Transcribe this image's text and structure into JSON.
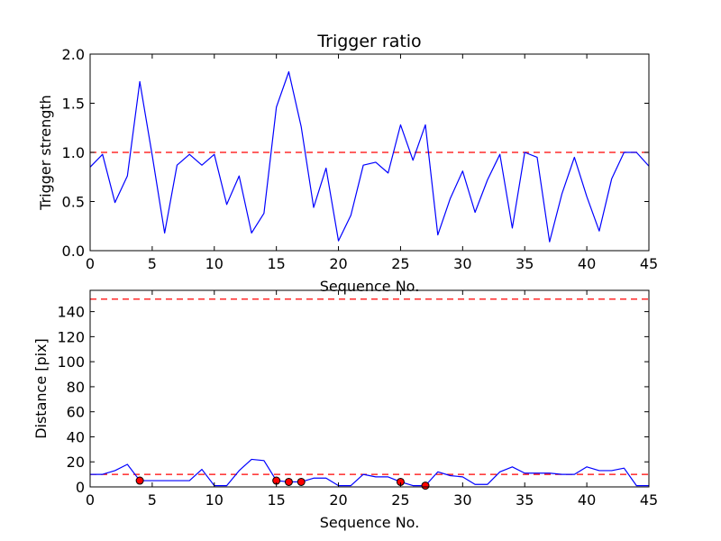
{
  "colors": {
    "series": "#0000ff",
    "threshold": "#ff0000",
    "marker": "#ff0000"
  },
  "chart_data": [
    {
      "type": "line",
      "title": "Trigger ratio",
      "xlabel": "Sequence No.",
      "ylabel": "Trigger strength",
      "xlim": [
        0,
        45
      ],
      "ylim": [
        0,
        2.0
      ],
      "xticks": [
        "0",
        "5",
        "10",
        "15",
        "20",
        "25",
        "30",
        "35",
        "40",
        "45"
      ],
      "yticks": [
        "0.0",
        "0.5",
        "1.0",
        "1.5",
        "2.0"
      ],
      "grid": false,
      "series": [
        {
          "x": [
            0,
            1,
            2,
            3,
            4,
            5,
            6,
            7,
            8,
            9,
            10,
            11,
            12,
            13,
            14,
            15,
            16,
            17,
            18,
            19,
            20,
            21,
            22,
            23,
            24,
            25,
            26,
            27,
            28,
            29,
            30,
            31,
            32,
            33,
            34,
            35,
            36,
            37,
            38,
            39,
            40,
            41,
            42,
            43,
            44,
            45
          ],
          "values": [
            0.85,
            0.98,
            0.49,
            0.76,
            1.72,
            0.97,
            0.18,
            0.87,
            0.98,
            0.87,
            0.98,
            0.47,
            0.76,
            0.18,
            0.38,
            1.46,
            1.82,
            1.26,
            0.44,
            0.84,
            0.1,
            0.36,
            0.87,
            0.9,
            0.79,
            1.28,
            0.92,
            1.28,
            0.16,
            0.53,
            0.81,
            0.39,
            0.72,
            0.98,
            0.23,
            1.0,
            0.95,
            0.09,
            0.58,
            0.95,
            0.55,
            0.2,
            0.73,
            1.0,
            1.0,
            0.86
          ]
        }
      ],
      "hlines": [
        1.0
      ]
    },
    {
      "type": "line",
      "title": "",
      "xlabel": "Sequence No.",
      "ylabel": "Distance [pix]",
      "xlim": [
        0,
        45
      ],
      "ylim": [
        0,
        157
      ],
      "xticks": [
        "0",
        "5",
        "10",
        "15",
        "20",
        "25",
        "30",
        "35",
        "40",
        "45"
      ],
      "yticks": [
        "0",
        "20",
        "40",
        "60",
        "80",
        "100",
        "120",
        "140"
      ],
      "grid": false,
      "series": [
        {
          "x": [
            0,
            1,
            2,
            3,
            4,
            5,
            6,
            7,
            8,
            9,
            10,
            11,
            12,
            13,
            14,
            15,
            16,
            17,
            18,
            19,
            20,
            21,
            22,
            23,
            24,
            25,
            26,
            27,
            28,
            29,
            30,
            31,
            32,
            33,
            34,
            35,
            36,
            37,
            38,
            39,
            40,
            41,
            42,
            43,
            44,
            45
          ],
          "values": [
            10,
            10,
            13,
            18,
            5,
            5,
            5,
            5,
            5,
            14,
            1,
            1,
            13,
            22,
            21,
            5,
            4,
            4,
            7,
            7,
            1,
            1,
            10,
            8,
            8,
            4,
            1,
            1,
            12,
            9,
            8,
            2,
            2,
            12,
            16,
            11,
            11,
            11,
            10,
            10,
            16,
            13,
            13,
            15,
            1,
            1
          ]
        }
      ],
      "markers": {
        "x": [
          4,
          15,
          16,
          17,
          25,
          27
        ],
        "y": [
          5,
          5,
          4,
          4,
          4,
          1
        ]
      },
      "hlines": [
        10,
        150
      ]
    }
  ]
}
